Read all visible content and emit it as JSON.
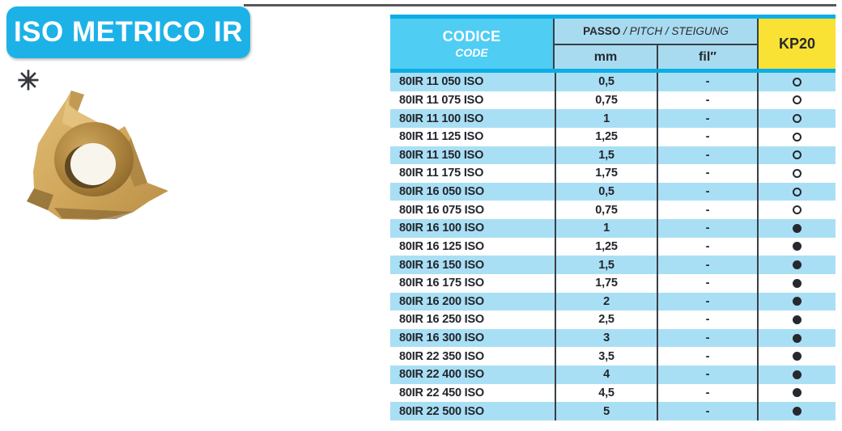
{
  "page": {
    "title": "ISO METRICO IR",
    "note_symbol": "✳"
  },
  "colors": {
    "accent_cyan": "#1cb2e8",
    "band_cyan": "#0caee6",
    "codice_blue": "#4fcdf3",
    "light_blue": "#a9dff5",
    "kp20_yellow": "#f9e233",
    "dark_line": "#3a3e44"
  },
  "table": {
    "header": {
      "codice_label": "CODICE",
      "code_label": "CODE",
      "passo_label": "PASSO",
      "passo_sub": " / PITCH / STEIGUNG",
      "mm_label": "mm",
      "fil_label": "fil″",
      "kp20_label": "KP20"
    },
    "rows": [
      {
        "code": "80IR 11 050 ISO",
        "mm": "0,5",
        "fil": "-",
        "kp20": "open-circle"
      },
      {
        "code": "80IR 11 075 ISO",
        "mm": "0,75",
        "fil": "-",
        "kp20": "open-circle"
      },
      {
        "code": "80IR 11 100 ISO",
        "mm": "1",
        "fil": "-",
        "kp20": "open-circle"
      },
      {
        "code": "80IR 11 125 ISO",
        "mm": "1,25",
        "fil": "-",
        "kp20": "open-circle"
      },
      {
        "code": "80IR 11 150 ISO",
        "mm": "1,5",
        "fil": "-",
        "kp20": "open-circle"
      },
      {
        "code": "80IR 11 175 ISO",
        "mm": "1,75",
        "fil": "-",
        "kp20": "open-circle"
      },
      {
        "code": "80IR 16 050 ISO",
        "mm": "0,5",
        "fil": "-",
        "kp20": "open-circle"
      },
      {
        "code": "80IR 16 075 ISO",
        "mm": "0,75",
        "fil": "-",
        "kp20": "open-circle"
      },
      {
        "code": "80IR 16 100 ISO",
        "mm": "1",
        "fil": "-",
        "kp20": "filled-circle"
      },
      {
        "code": "80IR 16 125 ISO",
        "mm": "1,25",
        "fil": "-",
        "kp20": "filled-circle"
      },
      {
        "code": "80IR 16 150 ISO",
        "mm": "1,5",
        "fil": "-",
        "kp20": "filled-circle"
      },
      {
        "code": "80IR 16 175 ISO",
        "mm": "1,75",
        "fil": "-",
        "kp20": "filled-circle"
      },
      {
        "code": "80IR 16 200 ISO",
        "mm": "2",
        "fil": "-",
        "kp20": "filled-circle"
      },
      {
        "code": "80IR 16 250 ISO",
        "mm": "2,5",
        "fil": "-",
        "kp20": "filled-circle"
      },
      {
        "code": "80IR 16 300 ISO",
        "mm": "3",
        "fil": "-",
        "kp20": "filled-circle"
      },
      {
        "code": "80IR 22 350 ISO",
        "mm": "3,5",
        "fil": "-",
        "kp20": "filled-circle"
      },
      {
        "code": "80IR 22 400 ISO",
        "mm": "4",
        "fil": "-",
        "kp20": "filled-circle"
      },
      {
        "code": "80IR 22 450 ISO",
        "mm": "4,5",
        "fil": "-",
        "kp20": "filled-circle"
      },
      {
        "code": "80IR 22 500 ISO",
        "mm": "5",
        "fil": "-",
        "kp20": "filled-circle"
      }
    ]
  }
}
